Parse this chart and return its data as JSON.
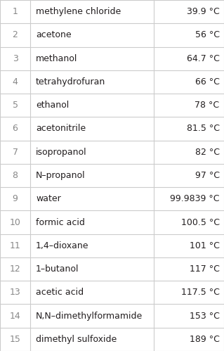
{
  "rows": [
    {
      "num": "1",
      "name": "methylene chloride",
      "temp": "39.9 °C"
    },
    {
      "num": "2",
      "name": "acetone",
      "temp": "56 °C"
    },
    {
      "num": "3",
      "name": "methanol",
      "temp": "64.7 °C"
    },
    {
      "num": "4",
      "name": "tetrahydrofuran",
      "temp": "66 °C"
    },
    {
      "num": "5",
      "name": "ethanol",
      "temp": "78 °C"
    },
    {
      "num": "6",
      "name": "acetonitrile",
      "temp": "81.5 °C"
    },
    {
      "num": "7",
      "name": "isopropanol",
      "temp": "82 °C"
    },
    {
      "num": "8",
      "name": "N–propanol",
      "temp": "97 °C"
    },
    {
      "num": "9",
      "name": "water",
      "temp": "99.9839 °C"
    },
    {
      "num": "10",
      "name": "formic acid",
      "temp": "100.5 °C"
    },
    {
      "num": "11",
      "name": "1,4–dioxane",
      "temp": "101 °C"
    },
    {
      "num": "12",
      "name": "1–butanol",
      "temp": "117 °C"
    },
    {
      "num": "13",
      "name": "acetic acid",
      "temp": "117.5 °C"
    },
    {
      "num": "14",
      "name": "N,N–dimethylformamide",
      "temp": "153 °C"
    },
    {
      "num": "15",
      "name": "dimethyl sulfoxide",
      "temp": "189 °C"
    }
  ],
  "bg_color": "#ffffff",
  "text_color": "#231f20",
  "num_color": "#888888",
  "line_color": "#cccccc",
  "font_size": 9.0,
  "col_bounds": [
    0.0,
    0.135,
    0.685,
    1.0
  ],
  "fig_width": 3.19,
  "fig_height": 4.99,
  "dpi": 100
}
